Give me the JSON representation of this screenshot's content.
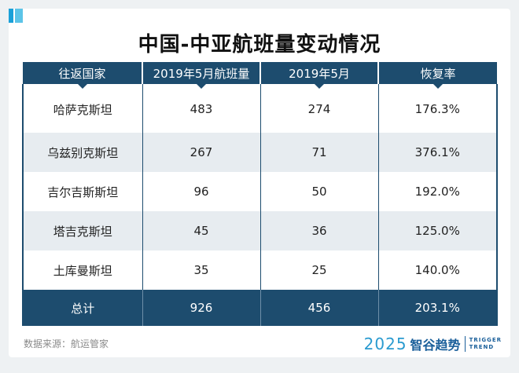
{
  "title": "中国-中亚航班量变动情况",
  "chart_data": {
    "type": "table",
    "columns": [
      "往返国家",
      "2019年5月航班量",
      "2019年5月",
      "恢复率"
    ],
    "rows": [
      [
        "哈萨克斯坦",
        "483",
        "274",
        "176.3%"
      ],
      [
        "乌兹别克斯坦",
        "267",
        "71",
        "376.1%"
      ],
      [
        "吉尔吉斯斯坦",
        "96",
        "50",
        "192.0%"
      ],
      [
        "塔吉克斯坦",
        "45",
        "36",
        "125.0%"
      ],
      [
        "土库曼斯坦",
        "35",
        "25",
        "140.0%"
      ]
    ],
    "total": [
      "总计",
      "926",
      "456",
      "203.1%"
    ]
  },
  "source": "数据来源：航运管家",
  "brand": {
    "year": "2025",
    "name": "智谷趋势",
    "en_line1": "TRIGGER",
    "en_line2": "TREND"
  },
  "colors": {
    "header": "#1d4c6e",
    "alt_row": "#e7ecf0",
    "accent": "#1aa0d8"
  }
}
